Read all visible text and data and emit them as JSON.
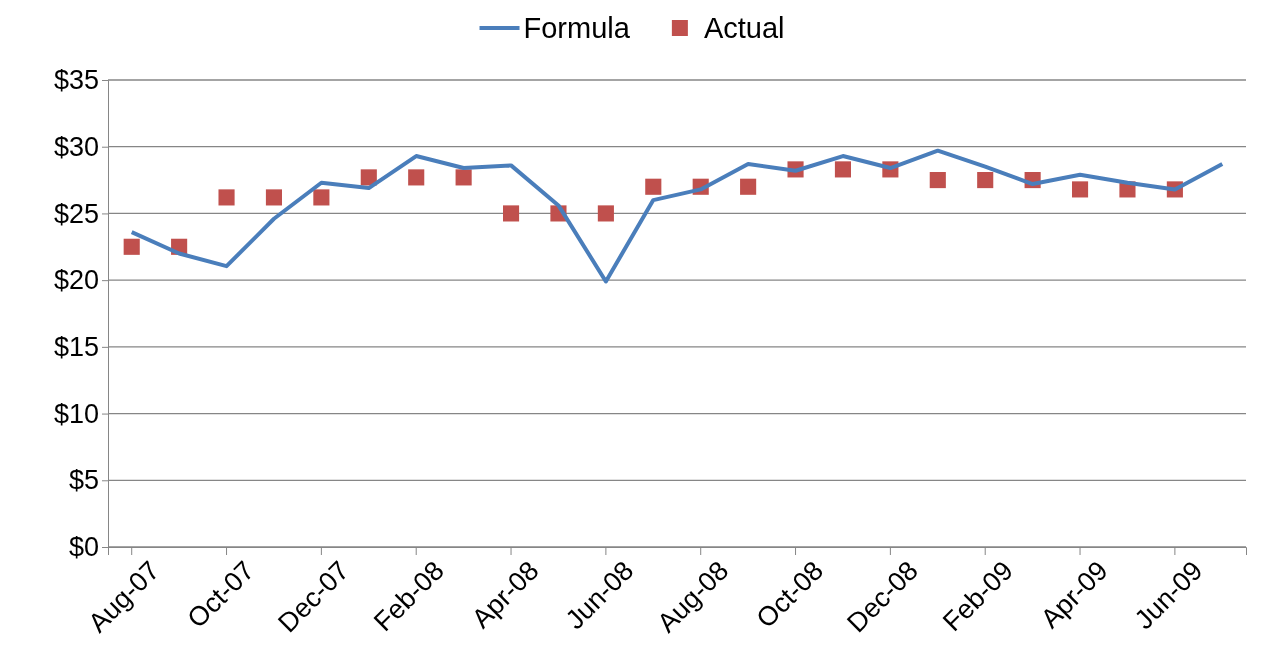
{
  "chart_data": {
    "type": "line",
    "categories": [
      "Aug-07",
      null,
      "Oct-07",
      null,
      "Dec-07",
      null,
      "Feb-08",
      null,
      "Apr-08",
      null,
      "Jun-08",
      null,
      "Aug-08",
      null,
      "Oct-08",
      null,
      "Dec-08",
      null,
      "Feb-09",
      null,
      "Apr-09",
      null,
      "Jun-09",
      null
    ],
    "series": [
      {
        "name": "Formula",
        "type": "line",
        "color": "#4a7ebb",
        "marker": "none",
        "values": [
          23.6,
          22.0,
          21.05,
          24.6,
          27.3,
          26.9,
          29.3,
          28.4,
          28.6,
          25.6,
          19.9,
          26.0,
          26.8,
          28.7,
          28.2,
          29.3,
          28.4,
          29.7,
          28.5,
          27.2,
          27.9,
          27.3,
          26.8,
          28.7
        ]
      },
      {
        "name": "Actual",
        "type": "scatter",
        "color": "#c0504d",
        "marker": "square",
        "values": [
          22.5,
          22.5,
          26.2,
          26.2,
          26.2,
          27.7,
          27.7,
          27.7,
          25.0,
          25.0,
          25.0,
          27.0,
          27.0,
          27.0,
          28.3,
          28.3,
          28.3,
          27.5,
          27.5,
          27.5,
          26.8,
          26.8,
          26.8,
          null
        ]
      }
    ],
    "ylim": [
      0,
      35
    ],
    "yticks": [
      {
        "value": 0,
        "label": "$0"
      },
      {
        "value": 5,
        "label": "$5"
      },
      {
        "value": 10,
        "label": "$10"
      },
      {
        "value": 15,
        "label": "$15"
      },
      {
        "value": 20,
        "label": "$20"
      },
      {
        "value": 25,
        "label": "$25"
      },
      {
        "value": 30,
        "label": "$30"
      },
      {
        "value": 35,
        "label": "$35"
      }
    ],
    "grid": "y",
    "legend": "top"
  }
}
